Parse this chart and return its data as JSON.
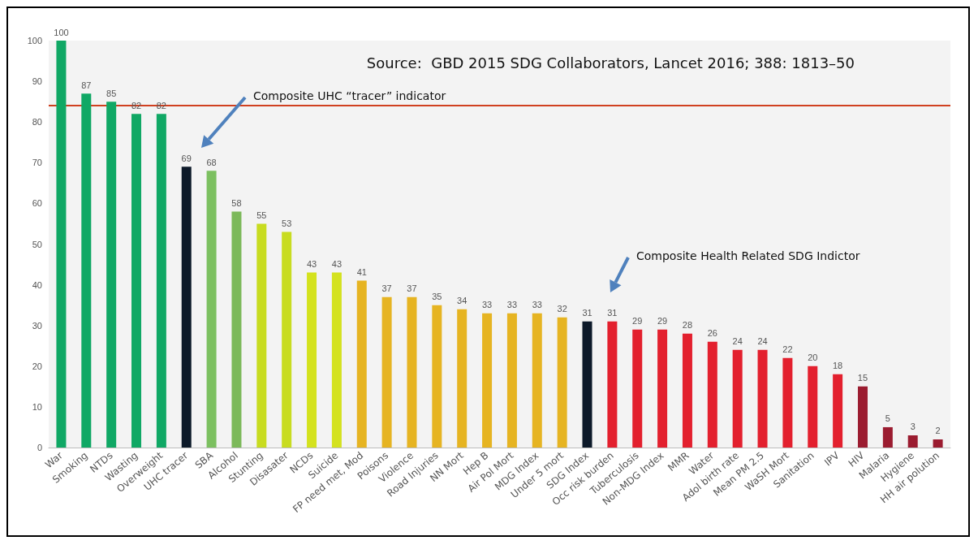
{
  "chart_data": {
    "type": "bar",
    "categories": [
      "War",
      "Smoking",
      "NTDs",
      "Wasting",
      "Overweight",
      "UHC tracer",
      "SBA",
      "Alcohol",
      "Stunting",
      "Disasater",
      "NCDs",
      "Suicide",
      "FP need met, Mod",
      "Poisons",
      "Violence",
      "Road Injuries",
      "NN Mort",
      "Hep B",
      "Air Pol Mort",
      "MDG Index",
      "Under 5 mort",
      "SDG Index",
      "Occ risk burden",
      "Tuberculosis",
      "Non-MDG Index",
      "MMR",
      "Water",
      "Adol birth rate",
      "Mean PM 2.5",
      "WaSH Mort",
      "Sanitation",
      "IPV",
      "HIV",
      "Malaria",
      "Hygiene",
      "HH air polution"
    ],
    "values": [
      100,
      87,
      85,
      82,
      82,
      69,
      68,
      58,
      55,
      53,
      43,
      43,
      41,
      37,
      37,
      35,
      34,
      33,
      33,
      33,
      32,
      31,
      31,
      29,
      29,
      28,
      26,
      24,
      24,
      22,
      20,
      18,
      15,
      5,
      3,
      2
    ],
    "colors": [
      "#10a865",
      "#10a865",
      "#10a865",
      "#10a865",
      "#10a865",
      "#0d1a2a",
      "#7cc060",
      "#7cb95a",
      "#c8dc20",
      "#c8dc20",
      "#d4e21e",
      "#d4e21e",
      "#e6b422",
      "#e6b422",
      "#e6b422",
      "#e6b422",
      "#e6b422",
      "#e6b422",
      "#e6b422",
      "#e6b422",
      "#e6b422",
      "#0d1a2a",
      "#e3202e",
      "#e3202e",
      "#e3202e",
      "#e3202e",
      "#e3202e",
      "#e3202e",
      "#e3202e",
      "#e3202e",
      "#e3202e",
      "#e3202e",
      "#9b1c30",
      "#9b1c30",
      "#9b1c30",
      "#9b1c30"
    ],
    "ylim": [
      0,
      100
    ],
    "yticks": [
      0,
      10,
      20,
      30,
      40,
      50,
      60,
      70,
      80,
      90,
      100
    ],
    "grid": false,
    "data_labels": true,
    "ref_lines": [
      {
        "axis": "y",
        "value": 84,
        "color": "#d04020"
      }
    ],
    "annotations": [
      "Source:  GBD 2015 SDG Collaborators, Lancet 2016; 388: 1813–50",
      "Composite UHC “tracer” indicator",
      "Composite Health Related SDG Indictor"
    ]
  }
}
